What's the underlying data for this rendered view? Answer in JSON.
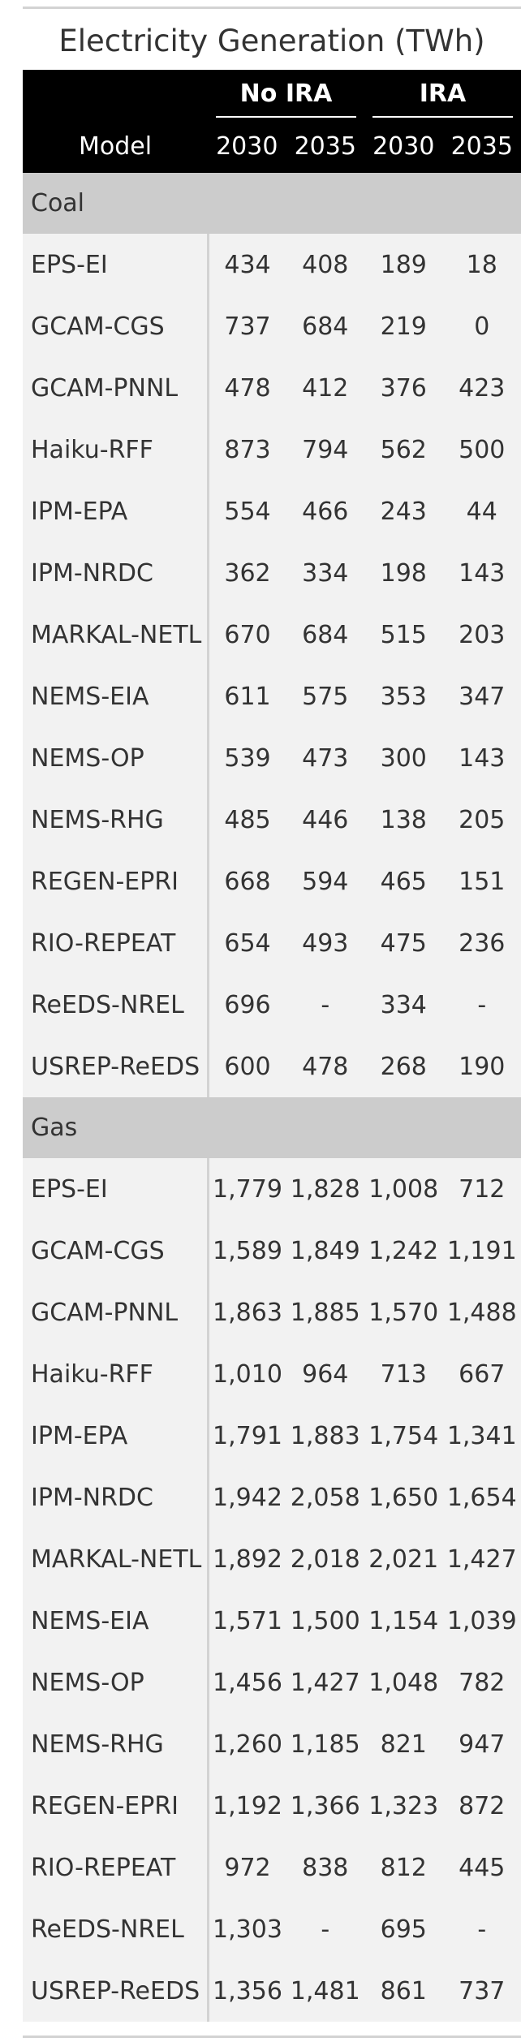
{
  "title": "Electricity Generation (TWh)",
  "header": {
    "model_label": "Model",
    "spanners": [
      "No IRA",
      "IRA"
    ],
    "years": [
      "2030",
      "2035",
      "2030",
      "2035"
    ]
  },
  "groups": [
    {
      "name": "Coal",
      "rows": [
        {
          "model": "EPS-EI",
          "values": [
            "434",
            "408",
            "189",
            "18"
          ]
        },
        {
          "model": "GCAM-CGS",
          "values": [
            "737",
            "684",
            "219",
            "0"
          ]
        },
        {
          "model": "GCAM-PNNL",
          "values": [
            "478",
            "412",
            "376",
            "423"
          ]
        },
        {
          "model": "Haiku-RFF",
          "values": [
            "873",
            "794",
            "562",
            "500"
          ]
        },
        {
          "model": "IPM-EPA",
          "values": [
            "554",
            "466",
            "243",
            "44"
          ]
        },
        {
          "model": "IPM-NRDC",
          "values": [
            "362",
            "334",
            "198",
            "143"
          ]
        },
        {
          "model": "MARKAL-NETL",
          "values": [
            "670",
            "684",
            "515",
            "203"
          ]
        },
        {
          "model": "NEMS-EIA",
          "values": [
            "611",
            "575",
            "353",
            "347"
          ]
        },
        {
          "model": "NEMS-OP",
          "values": [
            "539",
            "473",
            "300",
            "143"
          ]
        },
        {
          "model": "NEMS-RHG",
          "values": [
            "485",
            "446",
            "138",
            "205"
          ]
        },
        {
          "model": "REGEN-EPRI",
          "values": [
            "668",
            "594",
            "465",
            "151"
          ]
        },
        {
          "model": "RIO-REPEAT",
          "values": [
            "654",
            "493",
            "475",
            "236"
          ]
        },
        {
          "model": "ReEDS-NREL",
          "values": [
            "696",
            "-",
            "334",
            "-"
          ]
        },
        {
          "model": "USREP-ReEDS",
          "values": [
            "600",
            "478",
            "268",
            "190"
          ]
        }
      ]
    },
    {
      "name": "Gas",
      "rows": [
        {
          "model": "EPS-EI",
          "values": [
            "1,779",
            "1,828",
            "1,008",
            "712"
          ]
        },
        {
          "model": "GCAM-CGS",
          "values": [
            "1,589",
            "1,849",
            "1,242",
            "1,191"
          ]
        },
        {
          "model": "GCAM-PNNL",
          "values": [
            "1,863",
            "1,885",
            "1,570",
            "1,488"
          ]
        },
        {
          "model": "Haiku-RFF",
          "values": [
            "1,010",
            "964",
            "713",
            "667"
          ]
        },
        {
          "model": "IPM-EPA",
          "values": [
            "1,791",
            "1,883",
            "1,754",
            "1,341"
          ]
        },
        {
          "model": "IPM-NRDC",
          "values": [
            "1,942",
            "2,058",
            "1,650",
            "1,654"
          ]
        },
        {
          "model": "MARKAL-NETL",
          "values": [
            "1,892",
            "2,018",
            "2,021",
            "1,427"
          ]
        },
        {
          "model": "NEMS-EIA",
          "values": [
            "1,571",
            "1,500",
            "1,154",
            "1,039"
          ]
        },
        {
          "model": "NEMS-OP",
          "values": [
            "1,456",
            "1,427",
            "1,048",
            "782"
          ]
        },
        {
          "model": "NEMS-RHG",
          "values": [
            "1,260",
            "1,185",
            "821",
            "947"
          ]
        },
        {
          "model": "REGEN-EPRI",
          "values": [
            "1,192",
            "1,366",
            "1,323",
            "872"
          ]
        },
        {
          "model": "RIO-REPEAT",
          "values": [
            "972",
            "838",
            "812",
            "445"
          ]
        },
        {
          "model": "ReEDS-NREL",
          "values": [
            "1,303",
            "-",
            "695",
            "-"
          ]
        },
        {
          "model": "USREP-ReEDS",
          "values": [
            "1,356",
            "1,481",
            "861",
            "737"
          ]
        }
      ]
    }
  ],
  "colors": {
    "header_bg": "#000000",
    "header_text": "#ffffff",
    "group_bg": "#cccccc",
    "row_bg": "#f2f2f2",
    "rule": "#d3d3d3",
    "text": "#333333"
  }
}
